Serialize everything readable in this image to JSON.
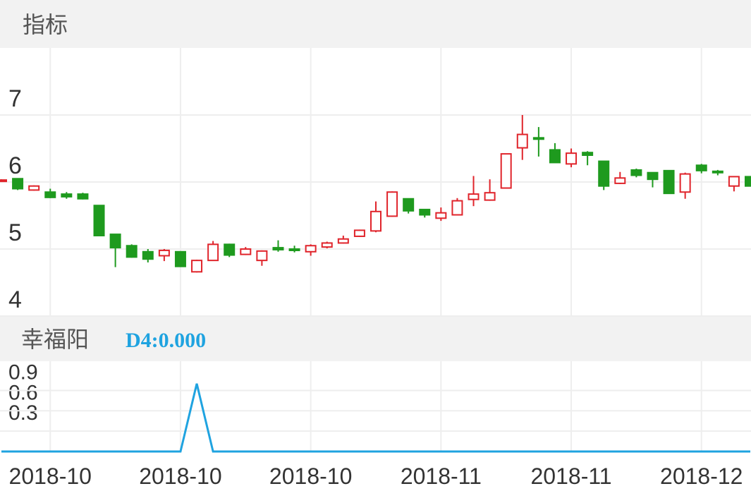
{
  "chart_data": [
    {
      "type": "candlestick",
      "title": "指标",
      "up_color": "#e0242b",
      "down_color": "#1e9a1e",
      "grid": true,
      "ylim": [
        4,
        8
      ],
      "yticks": [
        4,
        5,
        6,
        7
      ],
      "categories": [
        null,
        null,
        null,
        "2018-10",
        null,
        null,
        null,
        null,
        null,
        null,
        null,
        "2018-10",
        null,
        null,
        null,
        null,
        null,
        null,
        null,
        "2018-10",
        null,
        null,
        null,
        null,
        null,
        null,
        null,
        "2018-11",
        null,
        null,
        null,
        null,
        null,
        null,
        null,
        "2018-11",
        null,
        null,
        null,
        null,
        null,
        null,
        null,
        "2018-12",
        null,
        null,
        null
      ],
      "open": [
        6.02,
        6.05,
        5.88,
        5.85,
        5.82,
        5.82,
        5.65,
        5.22,
        5.05,
        4.96,
        4.9,
        4.96,
        4.66,
        4.83,
        5.07,
        4.92,
        4.83,
        5.02,
        5.0,
        4.96,
        5.03,
        5.09,
        5.19,
        5.27,
        5.49,
        5.75,
        5.59,
        5.46,
        5.51,
        5.74,
        5.73,
        5.91,
        6.51,
        6.66,
        6.48,
        6.27,
        6.44,
        6.31,
        5.98,
        6.18,
        6.14,
        6.17,
        5.85,
        6.25,
        6.16,
        5.94,
        6.08
      ],
      "high": [
        6.04,
        6.05,
        5.95,
        5.9,
        5.85,
        5.84,
        5.65,
        5.22,
        5.07,
        5.0,
        5.0,
        4.96,
        4.84,
        5.12,
        5.08,
        5.03,
        4.98,
        5.13,
        5.05,
        5.07,
        5.11,
        5.2,
        5.29,
        5.71,
        5.86,
        5.75,
        5.59,
        5.62,
        5.76,
        6.09,
        6.04,
        6.42,
        7.0,
        6.82,
        6.58,
        6.5,
        6.46,
        6.31,
        6.15,
        6.2,
        6.14,
        6.17,
        6.14,
        6.27,
        6.18,
        6.08,
        6.08
      ],
      "low": [
        6.01,
        5.88,
        5.87,
        5.76,
        5.75,
        5.74,
        5.2,
        4.73,
        4.87,
        4.8,
        4.82,
        4.74,
        4.65,
        4.83,
        4.88,
        4.91,
        4.75,
        4.96,
        4.95,
        4.9,
        5.01,
        5.08,
        5.18,
        5.25,
        5.48,
        5.53,
        5.47,
        5.42,
        5.5,
        5.64,
        5.72,
        5.9,
        6.33,
        6.38,
        6.29,
        6.22,
        6.25,
        5.88,
        5.97,
        6.07,
        5.92,
        5.83,
        5.75,
        6.13,
        6.1,
        5.86,
        5.94
      ],
      "close": [
        6.03,
        5.9,
        5.94,
        5.77,
        5.78,
        5.75,
        5.2,
        5.02,
        4.88,
        4.85,
        4.98,
        4.74,
        4.83,
        5.07,
        4.91,
        5.0,
        4.97,
        4.99,
        4.98,
        5.05,
        5.09,
        5.15,
        5.28,
        5.56,
        5.85,
        5.57,
        5.51,
        5.54,
        5.72,
        5.82,
        5.84,
        6.42,
        6.71,
        6.64,
        6.29,
        6.43,
        6.4,
        5.94,
        6.06,
        6.1,
        6.04,
        5.83,
        6.12,
        6.17,
        6.14,
        6.08,
        5.94
      ]
    },
    {
      "type": "line",
      "title": "幸福阳",
      "annotation": "D4:0.000",
      "color": "#1fa3e0",
      "grid": true,
      "ylim": [
        0,
        1.3
      ],
      "yticks": [
        0.3,
        0.6,
        0.9
      ],
      "values": [
        0,
        0,
        0,
        0,
        0,
        0,
        0,
        0,
        0,
        0,
        0,
        0,
        1,
        0,
        0,
        0,
        0,
        0,
        0,
        0,
        0,
        0,
        0,
        0,
        0,
        0,
        0,
        0,
        0,
        0,
        0,
        0,
        0,
        0,
        0,
        0,
        0,
        0,
        0,
        0,
        0,
        0,
        0,
        0,
        0,
        0,
        0
      ]
    }
  ]
}
